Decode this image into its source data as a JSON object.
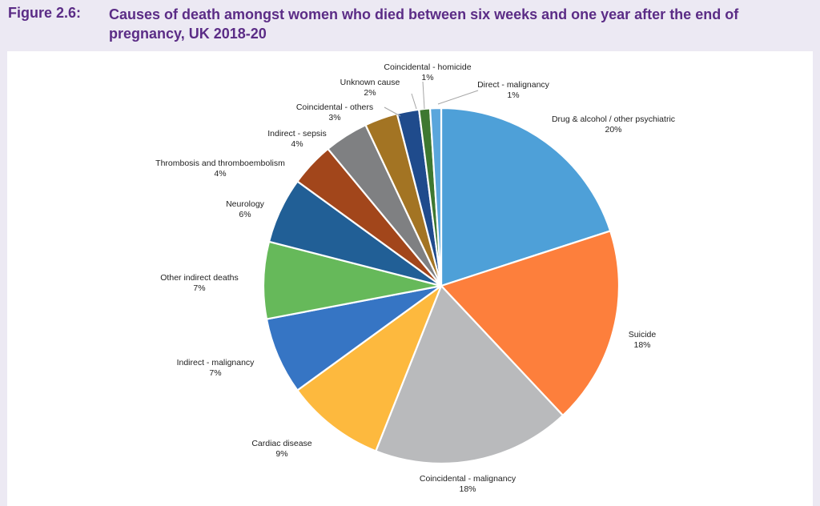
{
  "figure": {
    "number": "Figure 2.6:",
    "title": "Causes of death amongst women who died between six weeks and one year after the end of pregnancy, UK 2018-20"
  },
  "chart_data": {
    "type": "pie",
    "start_angle_deg": 0,
    "direction": "clockwise",
    "slices": [
      {
        "label": "Drug & alcohol / other psychiatric",
        "value": 20,
        "display": "20%",
        "color": "#4ea0d8"
      },
      {
        "label": "Suicide",
        "value": 18,
        "display": "18%",
        "color": "#fd7f3c"
      },
      {
        "label": "Coincidental - malignancy",
        "value": 18,
        "display": "18%",
        "color": "#b9babc"
      },
      {
        "label": "Cardiac disease",
        "value": 9,
        "display": "9%",
        "color": "#fdb93e"
      },
      {
        "label": "Indirect - malignancy",
        "value": 7,
        "display": "7%",
        "color": "#3675c4"
      },
      {
        "label": "Other indirect deaths",
        "value": 7,
        "display": "7%",
        "color": "#66b95a"
      },
      {
        "label": "Neurology",
        "value": 6,
        "display": "6%",
        "color": "#215f96"
      },
      {
        "label": "Thrombosis and thromboembolism",
        "value": 4,
        "display": "4%",
        "color": "#a2461b"
      },
      {
        "label": "Indirect - sepsis",
        "value": 4,
        "display": "4%",
        "color": "#7f8082"
      },
      {
        "label": "Coincidental - others",
        "value": 3,
        "display": "3%",
        "color": "#a37423"
      },
      {
        "label": "Unknown cause",
        "value": 2,
        "display": "2%",
        "color": "#1f4b8c"
      },
      {
        "label": "Coincidental - homicide",
        "value": 1,
        "display": "1%",
        "color": "#3e7831"
      },
      {
        "label": "Direct - malignancy",
        "value": 1,
        "display": "1%",
        "color": "#5aa6dc"
      }
    ]
  }
}
